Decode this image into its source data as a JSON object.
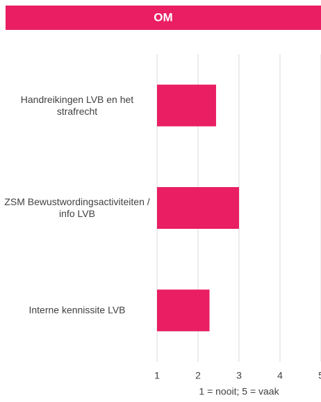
{
  "chart_data": {
    "type": "bar",
    "orientation": "horizontal",
    "title": "OM",
    "categories": [
      "Handreikingen LVB en het strafrecht",
      "ZSM Bewustwordingsactiviteiten / info LVB",
      "Interne kennissite LVB"
    ],
    "values": [
      2.44,
      3.0,
      2.28
    ],
    "color": "#e91e63",
    "xlim": [
      1,
      5
    ],
    "xticks": [
      1,
      2,
      3,
      4,
      5
    ],
    "grid": true,
    "x_label": "1 = nooit; 5 = vaak"
  }
}
